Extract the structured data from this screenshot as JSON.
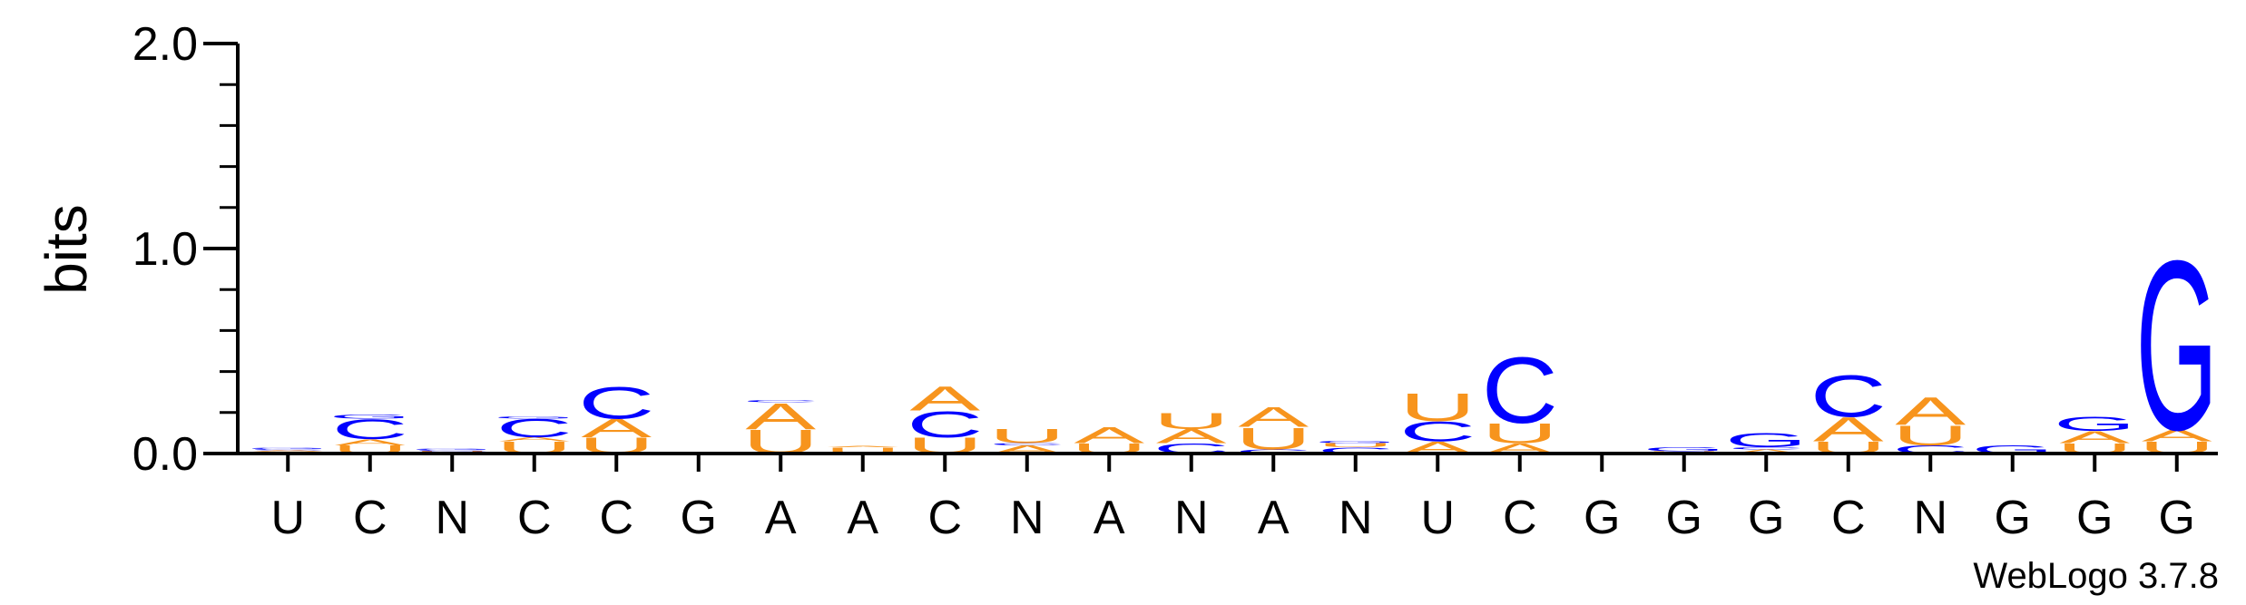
{
  "chart_data": {
    "type": "sequence-logo",
    "ylabel": "bits",
    "ylim": [
      0,
      2.0
    ],
    "yticks": [
      "0.0",
      "1.0",
      "2.0"
    ],
    "credit": "WebLogo 3.7.8",
    "colors": {
      "A": "#f7941d",
      "U": "#f7941d",
      "C": "#0000ff",
      "G": "#0000ff"
    },
    "positions": [
      {
        "label": "U",
        "stack": [
          [
            "U",
            0.008
          ],
          [
            "A",
            0.008
          ],
          [
            "C",
            0.006
          ],
          [
            "G",
            0.005
          ]
        ]
      },
      {
        "label": "C",
        "stack": [
          [
            "U",
            0.04
          ],
          [
            "A",
            0.03
          ],
          [
            "C",
            0.1
          ],
          [
            "G",
            0.02
          ]
        ]
      },
      {
        "label": "N",
        "stack": [
          [
            "A",
            0.006
          ],
          [
            "U",
            0.006
          ],
          [
            "C",
            0.006
          ],
          [
            "G",
            0.005
          ]
        ]
      },
      {
        "label": "C",
        "stack": [
          [
            "U",
            0.06
          ],
          [
            "A",
            0.02
          ],
          [
            "C",
            0.09
          ],
          [
            "G",
            0.01
          ]
        ]
      },
      {
        "label": "C",
        "stack": [
          [
            "U",
            0.08
          ],
          [
            "A",
            0.09
          ],
          [
            "C",
            0.16
          ]
        ]
      },
      {
        "label": "G",
        "stack": [
          [
            "G",
            0.005
          ],
          [
            "C",
            0.004
          ]
        ]
      },
      {
        "label": "A",
        "stack": [
          [
            "U",
            0.12
          ],
          [
            "A",
            0.13
          ],
          [
            "C",
            0.01
          ]
        ]
      },
      {
        "label": "A",
        "stack": [
          [
            "U",
            0.03
          ],
          [
            "A",
            0.005
          ]
        ]
      },
      {
        "label": "C",
        "stack": [
          [
            "U",
            0.08
          ],
          [
            "C",
            0.13
          ],
          [
            "A",
            0.12
          ]
        ]
      },
      {
        "label": "N",
        "stack": [
          [
            "A",
            0.04
          ],
          [
            "C",
            0.01
          ],
          [
            "U",
            0.07
          ]
        ]
      },
      {
        "label": "A",
        "stack": [
          [
            "U",
            0.05
          ],
          [
            "A",
            0.08
          ]
        ]
      },
      {
        "label": "N",
        "stack": [
          [
            "C",
            0.05
          ],
          [
            "A",
            0.07
          ],
          [
            "U",
            0.08
          ]
        ]
      },
      {
        "label": "A",
        "stack": [
          [
            "C",
            0.02
          ],
          [
            "U",
            0.11
          ],
          [
            "A",
            0.1
          ]
        ]
      },
      {
        "label": "N",
        "stack": [
          [
            "C",
            0.03
          ],
          [
            "U",
            0.02
          ],
          [
            "G",
            0.01
          ]
        ]
      },
      {
        "label": "U",
        "stack": [
          [
            "A",
            0.06
          ],
          [
            "C",
            0.1
          ],
          [
            "U",
            0.14
          ]
        ]
      },
      {
        "label": "C",
        "stack": [
          [
            "A",
            0.05
          ],
          [
            "U",
            0.1
          ],
          [
            "C",
            0.33
          ]
        ]
      },
      {
        "label": "G",
        "stack": [
          [
            "G",
            0.005
          ]
        ]
      },
      {
        "label": "G",
        "stack": [
          [
            "U",
            0.01
          ],
          [
            "G",
            0.02
          ]
        ]
      },
      {
        "label": "G",
        "stack": [
          [
            "A",
            0.02
          ],
          [
            "C",
            0.01
          ],
          [
            "G",
            0.07
          ]
        ]
      },
      {
        "label": "C",
        "stack": [
          [
            "U",
            0.06
          ],
          [
            "A",
            0.12
          ],
          [
            "C",
            0.21
          ]
        ]
      },
      {
        "label": "N",
        "stack": [
          [
            "C",
            0.04
          ],
          [
            "U",
            0.1
          ],
          [
            "A",
            0.14
          ]
        ]
      },
      {
        "label": "G",
        "stack": [
          [
            "G",
            0.04
          ]
        ]
      },
      {
        "label": "G",
        "stack": [
          [
            "U",
            0.05
          ],
          [
            "A",
            0.06
          ],
          [
            "G",
            0.07
          ]
        ]
      },
      {
        "label": "G",
        "stack": [
          [
            "U",
            0.06
          ],
          [
            "A",
            0.06
          ],
          [
            "G",
            0.85
          ]
        ]
      }
    ]
  }
}
